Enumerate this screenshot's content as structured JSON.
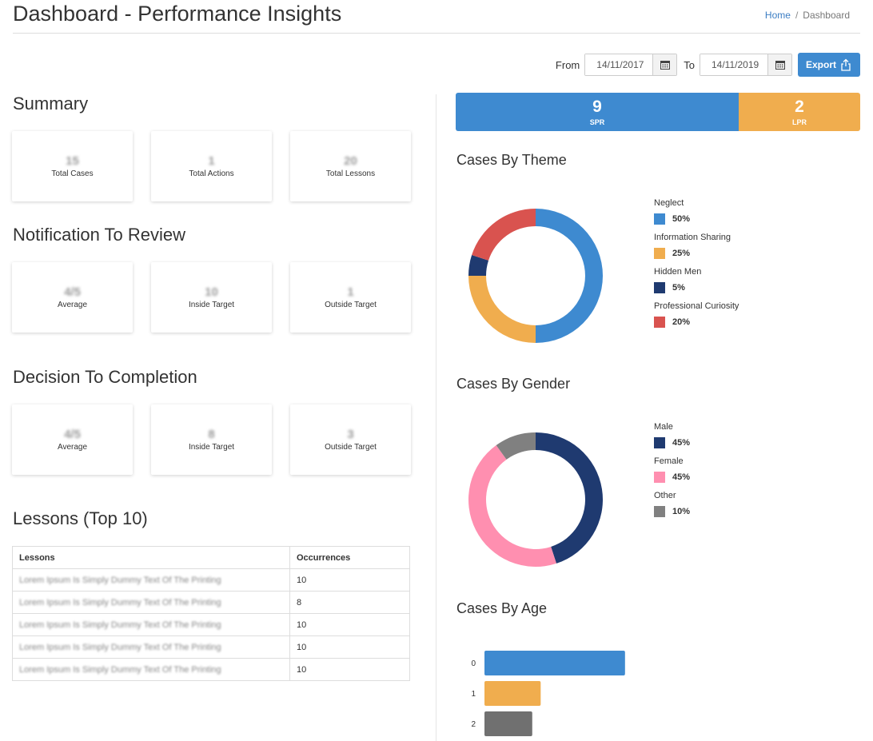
{
  "header": {
    "title": "Dashboard - Performance Insights",
    "breadcrumb": {
      "home": "Home",
      "separator": "/",
      "current": "Dashboard"
    }
  },
  "filters": {
    "from_label": "From",
    "from_value": "14/11/2017",
    "to_label": "To",
    "to_value": "14/11/2019",
    "export_label": "Export"
  },
  "summary": {
    "title": "Summary",
    "cards": [
      {
        "value": "15",
        "label": "Total Cases"
      },
      {
        "value": "1",
        "label": "Total Actions"
      },
      {
        "value": "20",
        "label": "Total Lessons"
      }
    ]
  },
  "notification": {
    "title": "Notification To Review",
    "cards": [
      {
        "value": "4/5",
        "label": "Average"
      },
      {
        "value": "10",
        "label": "Inside Target"
      },
      {
        "value": "1",
        "label": "Outside Target"
      }
    ]
  },
  "decision": {
    "title": "Decision To Completion",
    "cards": [
      {
        "value": "4/5",
        "label": "Average"
      },
      {
        "value": "8",
        "label": "Inside Target"
      },
      {
        "value": "3",
        "label": "Outside Target"
      }
    ]
  },
  "lessons": {
    "title": "Lessons (Top 10)",
    "columns": [
      "Lessons",
      "Occurrences"
    ],
    "rows": [
      [
        "Lorem Ipsum Is Simply Dummy Text Of The Printing",
        "10"
      ],
      [
        "Lorem Ipsum Is Simply Dummy Text Of The Printing",
        "8"
      ],
      [
        "Lorem Ipsum Is Simply Dummy Text Of The Printing",
        "10"
      ],
      [
        "Lorem Ipsum Is Simply Dummy Text Of The Printing",
        "10"
      ],
      [
        "Lorem Ipsum Is Simply Dummy Text Of The Printing",
        "10"
      ]
    ]
  },
  "stats": {
    "spr": {
      "value": "9",
      "label": "SPR"
    },
    "lpr": {
      "value": "2",
      "label": "LPR"
    }
  },
  "colors": {
    "blue": "#3e8ad0",
    "orange": "#f0ad4e",
    "navy": "#1f3a70",
    "red": "#d9534f",
    "pink": "#ff8fb0",
    "gray": "#808080",
    "darkgray": "#707070"
  },
  "chart_data": [
    {
      "type": "pie",
      "title": "Cases By Theme",
      "legend_position": "right",
      "categories": [
        "Neglect",
        "Information Sharing",
        "Hidden Men",
        "Professional Curiosity"
      ],
      "values": [
        50,
        25,
        5,
        20
      ],
      "value_labels": [
        "50%",
        "25%",
        "5%",
        "20%"
      ],
      "colors": [
        "#3e8ad0",
        "#f0ad4e",
        "#1f3a70",
        "#d9534f"
      ]
    },
    {
      "type": "pie",
      "title": "Cases By Gender",
      "legend_position": "right",
      "categories": [
        "Male",
        "Female",
        "Other"
      ],
      "values": [
        45,
        45,
        10
      ],
      "value_labels": [
        "45%",
        "45%",
        "10%"
      ],
      "colors": [
        "#1f3a70",
        "#ff8fb0",
        "#808080"
      ]
    },
    {
      "type": "bar",
      "title": "Cases By Age",
      "orientation": "horizontal",
      "categories": [
        "0",
        "1",
        "2"
      ],
      "values": [
        5,
        2,
        1.7
      ],
      "xlim": [
        0,
        6
      ],
      "colors": [
        "#3e8ad0",
        "#f0ad4e",
        "#707070"
      ]
    }
  ]
}
